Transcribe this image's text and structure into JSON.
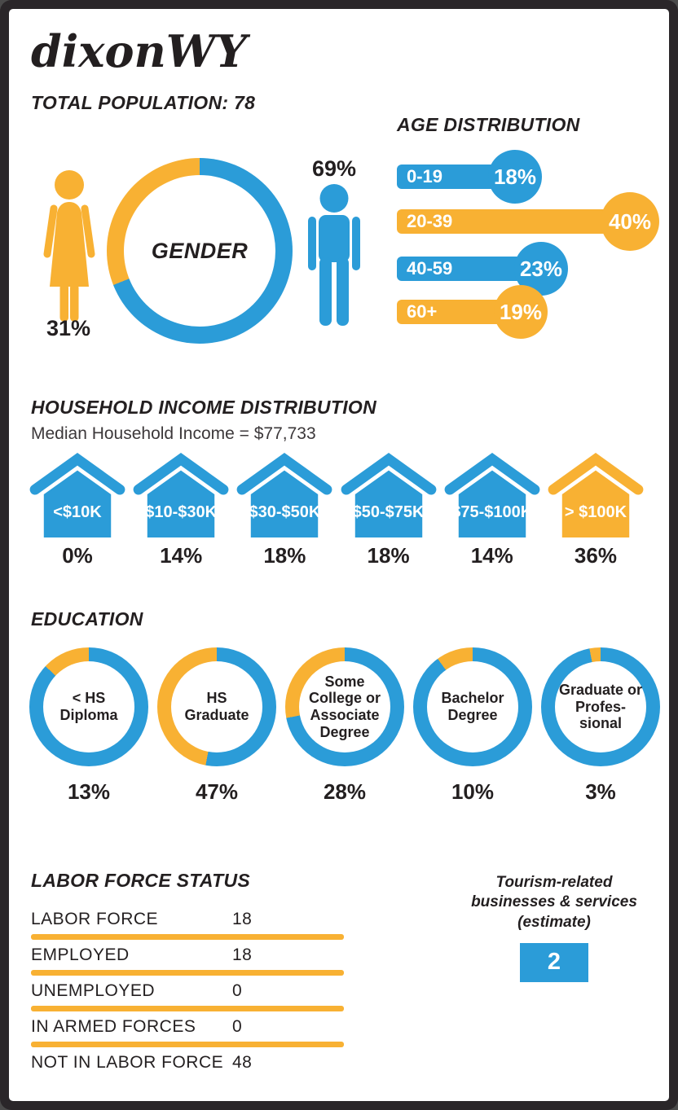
{
  "header": {
    "title": "dixonWY",
    "population": "TOTAL POPULATION: 78"
  },
  "colors": {
    "blue": "#2B9CD8",
    "yellow": "#F8B133",
    "ink": "#231F20",
    "frame": "#2A2629"
  },
  "chart_data": [
    {
      "id": "gender",
      "type": "pie",
      "title": "GENDER",
      "categories": [
        "Male",
        "Female"
      ],
      "values": [
        69,
        31
      ],
      "value_labels": [
        "69%",
        "31%"
      ],
      "colors": [
        "blue",
        "yellow"
      ],
      "layout": "donut ring; female (yellow) share sweeps counterclockwise from 12 o'clock; male icon blue on right, female icon yellow on left"
    },
    {
      "id": "age",
      "type": "bar",
      "title": "AGE DISTRIBUTION",
      "categories": [
        "0-19",
        "20-39",
        "40-59",
        "60+"
      ],
      "values": [
        18,
        40,
        23,
        19
      ],
      "value_labels": [
        "18%",
        "40%",
        "23%",
        "19%"
      ],
      "colors": [
        "blue",
        "yellow",
        "blue",
        "yellow"
      ],
      "unit": "%",
      "layout": "horizontal lollipop bars, category label inside bar, value inside end circle"
    },
    {
      "id": "income",
      "type": "bar",
      "title": "HOUSEHOLD INCOME DISTRIBUTION",
      "subtitle": "Median Household Income = $77,733",
      "categories": [
        "<$10K",
        "$10-$30K",
        "$30-$50K",
        "$50-$75K",
        "$75-$100K",
        "> $100K"
      ],
      "values": [
        0,
        14,
        18,
        18,
        14,
        36
      ],
      "value_labels": [
        "0%",
        "14%",
        "18%",
        "18%",
        "14%",
        "36%"
      ],
      "colors": [
        "blue",
        "blue",
        "blue",
        "blue",
        "blue",
        "yellow"
      ],
      "unit": "%",
      "layout": "house pictograms with range label inside, percent below"
    },
    {
      "id": "education",
      "type": "donut",
      "title": "EDUCATION",
      "categories": [
        "< HS Diploma",
        "HS Graduate",
        "Some College or Associate Degree",
        "Bachelor Degree",
        "Graduate or Profes-sional"
      ],
      "values": [
        13,
        47,
        28,
        10,
        3
      ],
      "value_labels": [
        "13%",
        "47%",
        "28%",
        "10%",
        "3%"
      ],
      "unit": "%",
      "layout": "five donuts; yellow share sweeps counterclockwise from 12 o'clock, remainder blue; percent below each donut"
    },
    {
      "id": "labor",
      "type": "table",
      "title": "LABOR FORCE STATUS",
      "rows": [
        {
          "label": "LABOR FORCE",
          "value": "18"
        },
        {
          "label": "EMPLOYED",
          "value": "18"
        },
        {
          "label": "UNEMPLOYED",
          "value": "0"
        },
        {
          "label": "IN ARMED FORCES",
          "value": "0"
        },
        {
          "label": "NOT IN LABOR FORCE",
          "value": "48"
        }
      ]
    },
    {
      "id": "tourism",
      "type": "table",
      "title_lines": [
        "Tourism-related",
        "businesses & services",
        "(estimate)"
      ],
      "value": "2"
    }
  ]
}
